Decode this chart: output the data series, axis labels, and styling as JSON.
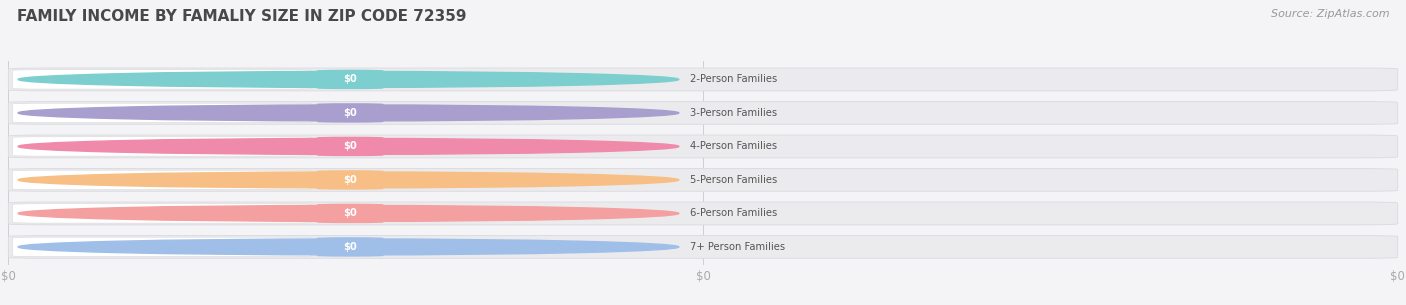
{
  "title": "FAMILY INCOME BY FAMALIY SIZE IN ZIP CODE 72359",
  "source": "Source: ZipAtlas.com",
  "categories": [
    "2-Person Families",
    "3-Person Families",
    "4-Person Families",
    "5-Person Families",
    "6-Person Families",
    "7+ Person Families"
  ],
  "values": [
    0,
    0,
    0,
    0,
    0,
    0
  ],
  "bar_colors": [
    "#7dcfcf",
    "#a89fce",
    "#f08aaa",
    "#f7bf85",
    "#f4a0a0",
    "#a0bfe8"
  ],
  "bg_color": "#f4f4f6",
  "bar_bg_color": "#ebebee",
  "bar_edge_color": "#dcdce4",
  "label_pill_color": "#ffffff",
  "label_pill_edge": "#dedede",
  "title_color": "#484848",
  "source_color": "#999999",
  "value_label_color": "#ffffff",
  "tick_label_color": "#aaaaaa",
  "xtick_labels": [
    "$0",
    "$0",
    "$0"
  ],
  "xtick_positions": [
    0.0,
    0.5,
    1.0
  ]
}
